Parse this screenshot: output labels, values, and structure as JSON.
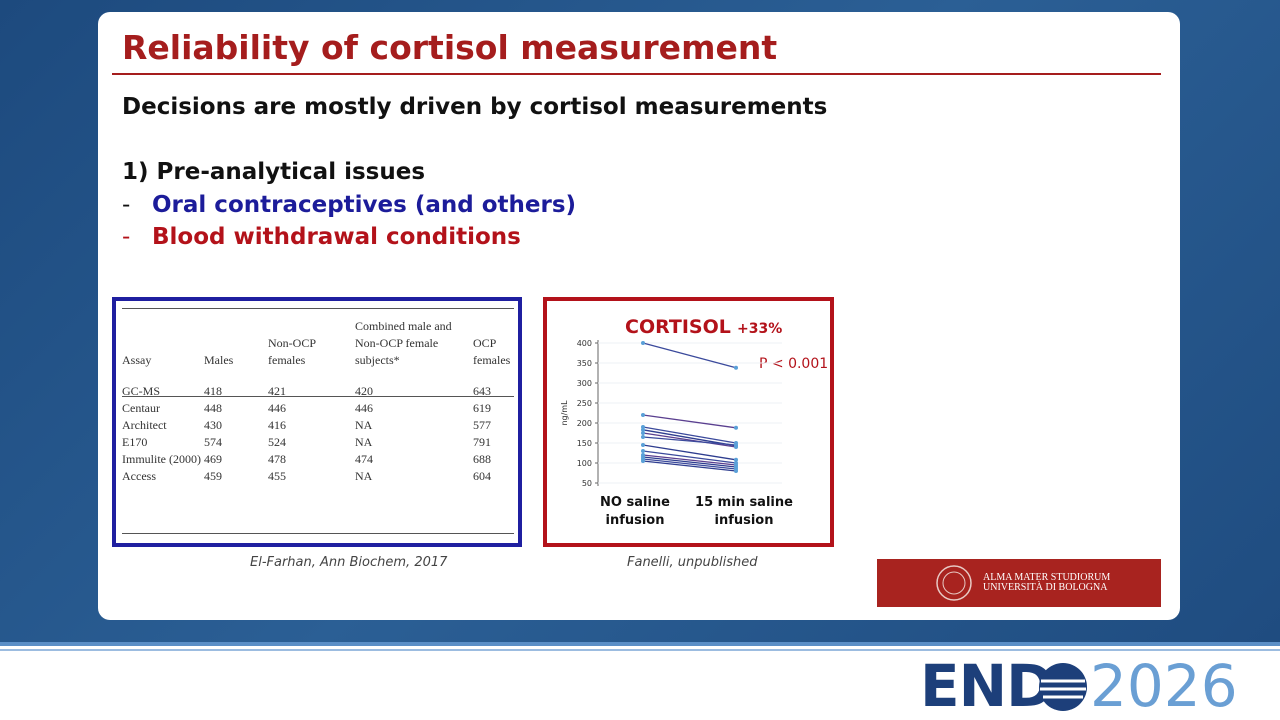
{
  "slide": {
    "title": "Reliability of cortisol measurement",
    "lead": "Decisions are mostly driven by cortisol measurements",
    "section": "1) Pre-analytical issues",
    "bullets": [
      "Oral contraceptives (and others)",
      "Blood withdrawal conditions"
    ]
  },
  "table": {
    "header": [
      "Assay",
      "Males",
      "Non-OCP females",
      "Combined male and Non-OCP female subjects*",
      "OCP females"
    ],
    "rows": [
      [
        "GC-MS",
        "418",
        "421",
        "420",
        "643"
      ],
      [
        "Centaur",
        "448",
        "446",
        "446",
        "619"
      ],
      [
        "Architect",
        "430",
        "416",
        "NA",
        "577"
      ],
      [
        "E170",
        "574",
        "524",
        "NA",
        "791"
      ],
      [
        "Immulite (2000)",
        "469",
        "478",
        "474",
        "688"
      ],
      [
        "Access",
        "459",
        "455",
        "NA",
        "604"
      ]
    ],
    "caption": "El-Farhan, Ann Biochem, 2017"
  },
  "chart_data": {
    "type": "line",
    "title": "CORTISOL",
    "annotations": [
      "+33%",
      "P < 0.001"
    ],
    "y_label": "ng/mL",
    "categories": [
      "NO saline infusion",
      "15 min saline infusion"
    ],
    "ylim": [
      50,
      400
    ],
    "yticks": [
      50,
      100,
      150,
      200,
      250,
      300,
      350,
      400
    ],
    "series": [
      {
        "color": "#3b4a9c",
        "values": [
          400,
          338
        ]
      },
      {
        "color": "#5a3f8f",
        "values": [
          220,
          188
        ]
      },
      {
        "color": "#3b4a9c",
        "values": [
          190,
          150
        ]
      },
      {
        "color": "#2e3d8f",
        "values": [
          183,
          143
        ]
      },
      {
        "color": "#5a3f8f",
        "values": [
          175,
          140
        ]
      },
      {
        "color": "#3b4a9c",
        "values": [
          165,
          145
        ]
      },
      {
        "color": "#2e3d8f",
        "values": [
          145,
          108
        ]
      },
      {
        "color": "#3b4a9c",
        "values": [
          130,
          100
        ]
      },
      {
        "color": "#5a3f8f",
        "values": [
          120,
          95
        ]
      },
      {
        "color": "#2e3d8f",
        "values": [
          115,
          90
        ]
      },
      {
        "color": "#3b4a9c",
        "values": [
          110,
          85
        ]
      },
      {
        "color": "#2e3d8f",
        "values": [
          105,
          80
        ]
      }
    ],
    "caption": "Fanelli, unpublished"
  },
  "logos": {
    "university": [
      "ALMA MATER STUDIORUM",
      "UNIVERSITÀ DI BOLOGNA"
    ],
    "conference": [
      "END",
      "2026"
    ]
  }
}
